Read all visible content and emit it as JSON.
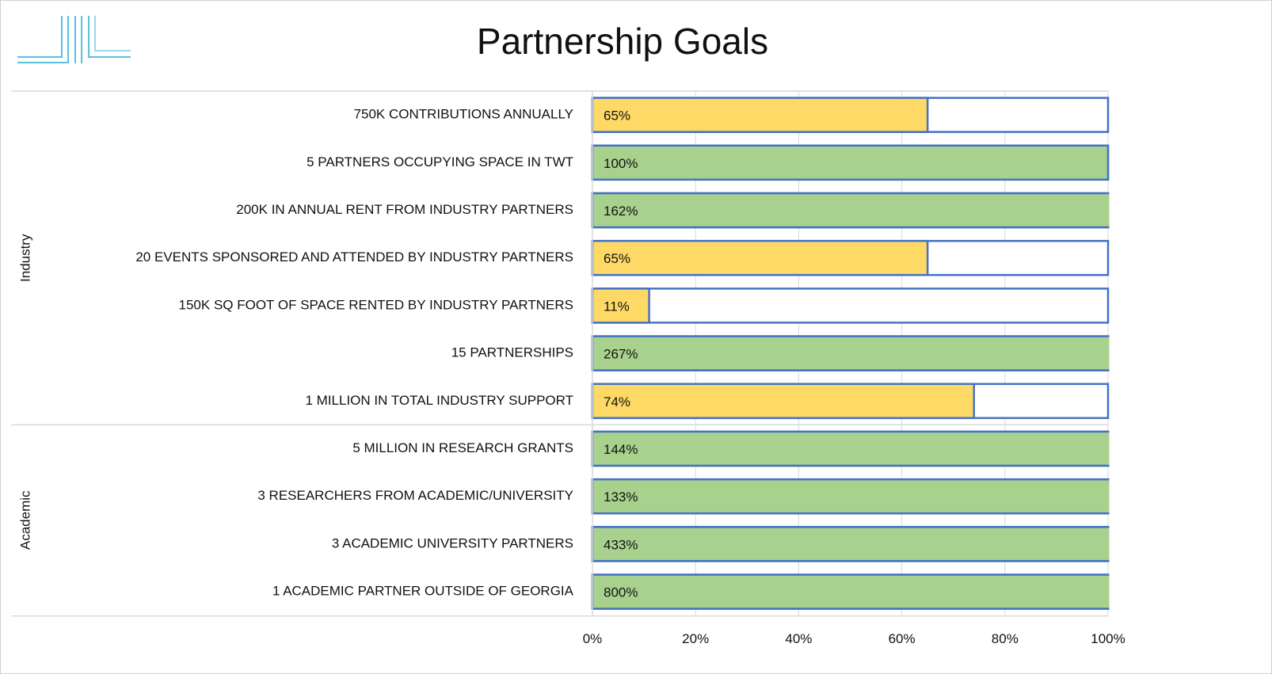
{
  "chart_data": {
    "type": "bar",
    "title": "Partnership Goals",
    "groups": [
      {
        "name": "Industry",
        "categories": [
          "750K CONTRIBUTIONS ANNUALLY",
          "5 PARTNERS OCCUPYING SPACE IN TWT",
          "200K IN ANNUAL RENT FROM INDUSTRY PARTNERS",
          "20 EVENTS SPONSORED AND ATTENDED BY INDUSTRY PARTNERS",
          "150K SQ FOOT OF SPACE RENTED BY INDUSTRY PARTNERS",
          "15 PARTNERSHIPS",
          "1 MILLION IN TOTAL INDUSTRY SUPPORT"
        ],
        "values": [
          65,
          100,
          162,
          65,
          11,
          267,
          74
        ],
        "value_labels": [
          "65%",
          "100%",
          "162%",
          "65%",
          "11%",
          "267%",
          "74%"
        ],
        "colors": [
          "#ffd966",
          "#a9d18e",
          "#a9d18e",
          "#ffd966",
          "#ffd966",
          "#a9d18e",
          "#ffd966"
        ]
      },
      {
        "name": "Academic",
        "categories": [
          "5 MILLION IN RESEARCH GRANTS",
          "3 RESEARCHERS FROM ACADEMIC/UNIVERSITY",
          "3 ACADEMIC UNIVERSITY PARTNERS",
          "1 ACADEMIC PARTNER OUTSIDE OF GEORGIA"
        ],
        "values": [
          144,
          133,
          433,
          800
        ],
        "value_labels": [
          "144%",
          "133%",
          "433%",
          "800%"
        ],
        "colors": [
          "#a9d18e",
          "#a9d18e",
          "#a9d18e",
          "#a9d18e"
        ]
      }
    ],
    "xlim": [
      0,
      100
    ],
    "xticks": [
      {
        "value": 0,
        "label": "0%"
      },
      {
        "value": 20,
        "label": "20%"
      },
      {
        "value": 40,
        "label": "40%"
      },
      {
        "value": 60,
        "label": "60%"
      },
      {
        "value": 80,
        "label": "80%"
      },
      {
        "value": 100,
        "label": "100%"
      }
    ],
    "grid": true,
    "outline_color": "#4472c4"
  }
}
